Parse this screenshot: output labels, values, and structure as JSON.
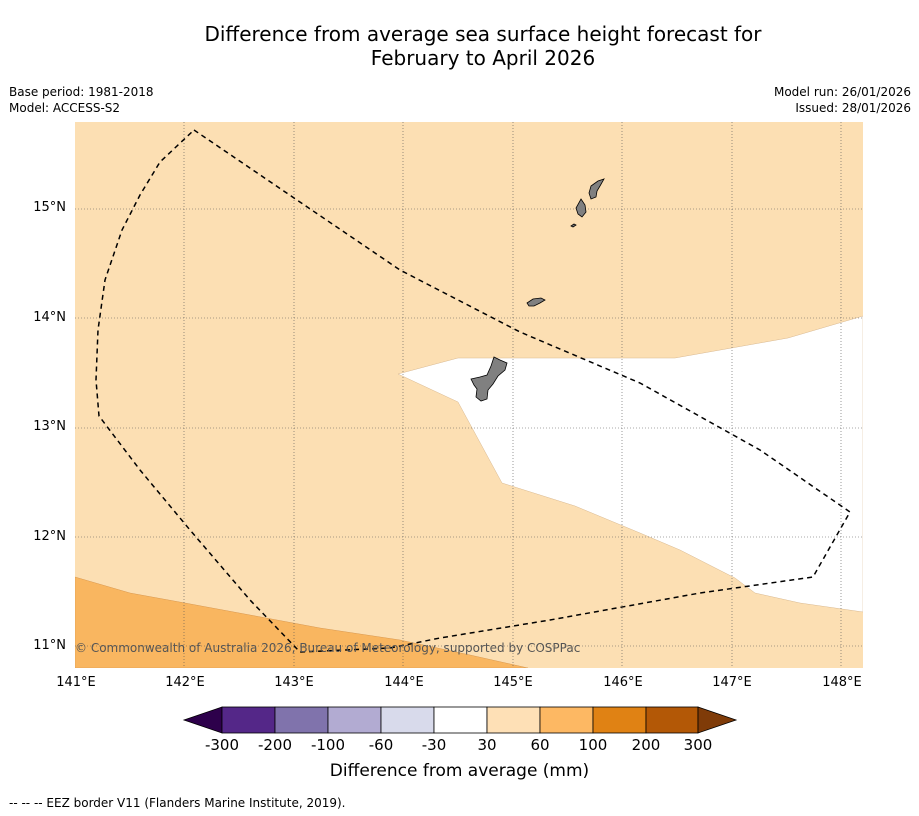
{
  "title_line1": "Difference from average sea surface height forecast for",
  "title_line2": "February to April 2026",
  "meta_left": {
    "base_period": "Base period: 1981-2018",
    "model": "Model: ACCESS-S2"
  },
  "meta_right": {
    "model_run": "Model run: 26/01/2026",
    "issued": "Issued: 28/01/2026"
  },
  "map": {
    "lat_labels": [
      "15°N",
      "14°N",
      "13°N",
      "12°N",
      "11°N"
    ],
    "lon_labels": [
      "141°E",
      "142°E",
      "143°E",
      "144°E",
      "145°E",
      "146°E",
      "147°E",
      "148°E"
    ],
    "copyright": "© Commonwealth of Australia 2026, Bureau of Meteorology, supported by COSPPac",
    "colors": {
      "band_30_60": "#fcdfb3",
      "band_60_100": "#f9b660",
      "land": "#808080",
      "neutral": "#ffffff"
    }
  },
  "colorbar": {
    "ticks": [
      "-300",
      "-200",
      "-100",
      "-60",
      "-30",
      "30",
      "60",
      "100",
      "200",
      "300"
    ],
    "title": "Difference from average (mm)",
    "colors": [
      "#2d004b",
      "#542788",
      "#8073ac",
      "#b2abd2",
      "#d8daeb",
      "#ffffff",
      "#fee0b6",
      "#fdb863",
      "#e08214",
      "#b35806",
      "#7f3b08"
    ]
  },
  "footnote": "--  --  -- EEZ border V11 (Flanders Marine Institute, 2019)."
}
